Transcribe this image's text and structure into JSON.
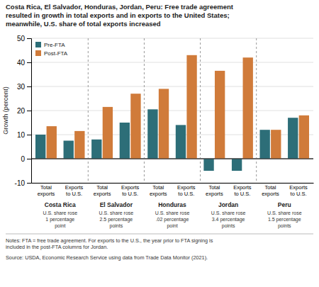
{
  "chart_data": {
    "type": "bar",
    "title": "Costa Rica, El Salvador, Honduras, Jordan, Peru: Free trade agreement\nresulted in growth in total exports and in exports to the United States;\nmeanwhile, U.S. share of total exports increased",
    "y_label": "Growth (percent)",
    "categories": [
      "Total\nexports",
      "Exports\nto U.S.",
      "Total\nexports",
      "Exports\nto U.S.",
      "Total\nexports",
      "Exports\nto U.S.",
      "Total\nexports",
      "Exports\nto U.S.",
      "Total\nexports",
      "Exports\nto U.S."
    ],
    "series": [
      {
        "name": "Pre-FTA",
        "color": "#2d6e78",
        "values": [
          10,
          7.5,
          8,
          15,
          20.5,
          14,
          -5,
          -5,
          12,
          17
        ]
      },
      {
        "name": "Post-FTA",
        "color": "#d07b3a",
        "values": [
          13.5,
          11.5,
          21.5,
          27,
          29,
          43,
          36.5,
          42,
          12,
          18
        ]
      }
    ],
    "groups": [
      "Costa Rica",
      "El Salvador",
      "Honduras",
      "Jordan",
      "Peru"
    ],
    "group_subtitles": [
      "U.S. share rose\n1 percentage\npoint",
      "U.S. share rose\n2.5 percentage\npoints",
      "U.S. share rose\n.02 percentage\npoint",
      "U.S. share rose\n3.4 percentage\npoints",
      "U.S. share rose\n1.5 percentage\npoints"
    ],
    "ylim": [
      -10,
      50
    ],
    "yticks": [
      -10,
      0,
      10,
      20,
      30,
      40,
      50
    ],
    "grid": true,
    "legend": "upper left",
    "notes": "Notes: FTA = free trade agreement. For exports to the U.S., the year prior to FTA signing is\nincluded in the post-FTA columns for Jordan.",
    "source": "Source: USDA, Economic Research Service using data from Trade Data Monitor (2021)."
  }
}
